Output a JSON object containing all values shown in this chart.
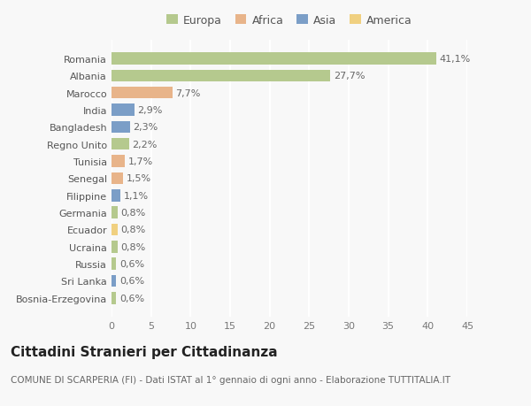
{
  "countries": [
    "Romania",
    "Albania",
    "Marocco",
    "India",
    "Bangladesh",
    "Regno Unito",
    "Tunisia",
    "Senegal",
    "Filippine",
    "Germania",
    "Ecuador",
    "Ucraina",
    "Russia",
    "Sri Lanka",
    "Bosnia-Erzegovina"
  ],
  "values": [
    41.1,
    27.7,
    7.7,
    2.9,
    2.3,
    2.2,
    1.7,
    1.5,
    1.1,
    0.8,
    0.8,
    0.8,
    0.6,
    0.6,
    0.6
  ],
  "labels": [
    "41,1%",
    "27,7%",
    "7,7%",
    "2,9%",
    "2,3%",
    "2,2%",
    "1,7%",
    "1,5%",
    "1,1%",
    "0,8%",
    "0,8%",
    "0,8%",
    "0,6%",
    "0,6%",
    "0,6%"
  ],
  "colors": [
    "#b5c98e",
    "#b5c98e",
    "#e8b48a",
    "#7b9ec7",
    "#7b9ec7",
    "#b5c98e",
    "#e8b48a",
    "#e8b48a",
    "#7b9ec7",
    "#b5c98e",
    "#f0d080",
    "#b5c98e",
    "#b5c98e",
    "#7b9ec7",
    "#b5c98e"
  ],
  "legend_labels": [
    "Europa",
    "Africa",
    "Asia",
    "America"
  ],
  "legend_colors": [
    "#b5c98e",
    "#e8b48a",
    "#7b9ec7",
    "#f0d080"
  ],
  "title": "Cittadini Stranieri per Cittadinanza",
  "subtitle": "COMUNE DI SCARPERIA (FI) - Dati ISTAT al 1° gennaio di ogni anno - Elaborazione TUTTITALIA.IT",
  "xlim": [
    0,
    45
  ],
  "xticks": [
    0,
    5,
    10,
    15,
    20,
    25,
    30,
    35,
    40,
    45
  ],
  "background_color": "#f8f8f8",
  "grid_color": "#ffffff",
  "bar_height": 0.7,
  "label_fontsize": 8,
  "tick_fontsize": 8,
  "ytick_fontsize": 8,
  "title_fontsize": 11,
  "subtitle_fontsize": 7.5,
  "legend_fontsize": 9
}
